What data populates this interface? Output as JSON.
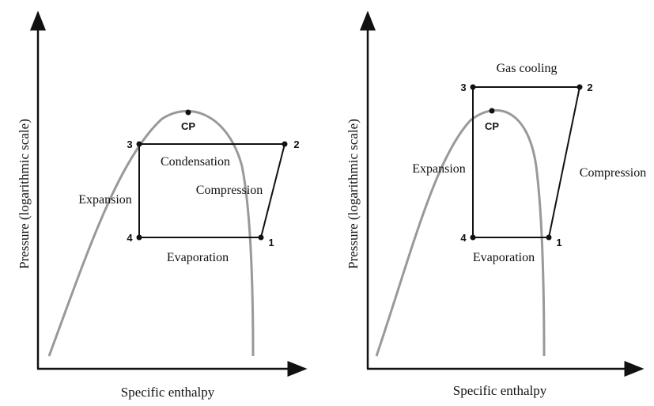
{
  "diagrams": [
    {
      "y_axis_label": "Pressure (logarithmic scale)",
      "x_axis_label": "Specific enthalpy",
      "critical_point": "CP",
      "points": [
        "1",
        "2",
        "3",
        "4"
      ],
      "processes": [
        "Condensation",
        "Compression",
        "Expansion",
        "Evaporation"
      ]
    },
    {
      "y_axis_label": "Pressure (logarithmic scale)",
      "x_axis_label": "Specific enthalpy",
      "critical_point": "CP",
      "points": [
        "1",
        "2",
        "3",
        "4"
      ],
      "processes": [
        "Gas cooling",
        "Compression",
        "Expansion",
        "Evaporation"
      ]
    }
  ]
}
